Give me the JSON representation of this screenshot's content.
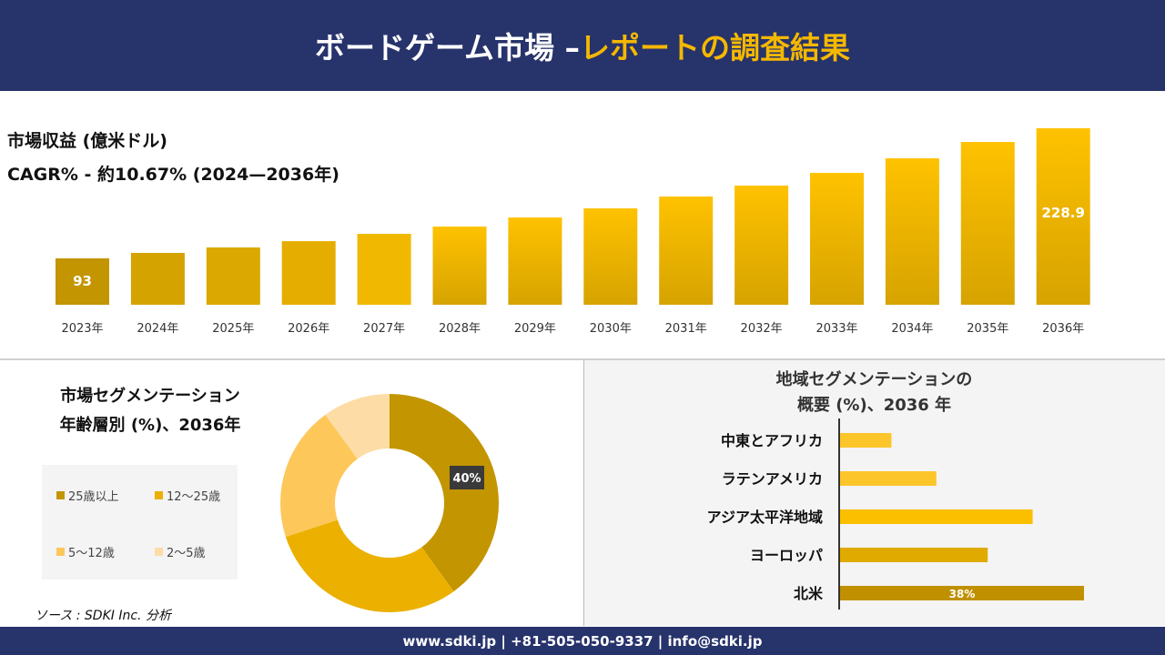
{
  "header": {
    "title_main": "ボードゲーム市場 –",
    "title_accent": "レポートの調査結果"
  },
  "colors": {
    "navy": "#27336b",
    "gold": "#f5b800"
  },
  "chart_data": [
    {
      "type": "bar",
      "title": "市場収益 (億米ドル)",
      "subtitle": "CAGR% - 約10.67% (2024—2036年)",
      "categories": [
        "2023年",
        "2024年",
        "2025年",
        "2026年",
        "2027年",
        "2028年",
        "2029年",
        "2030年",
        "2031年",
        "2032年",
        "2033年",
        "2034年",
        "2035年",
        "2036年"
      ],
      "values": [
        93,
        98.7,
        104.4,
        111,
        118.6,
        126.2,
        135.7,
        145.2,
        157.6,
        169,
        182.3,
        197.5,
        214.6,
        228.9
      ],
      "data_labels": {
        "0": "93",
        "13": "228.9"
      }
    },
    {
      "type": "pie",
      "variant": "donut",
      "title_line1": "市場セグメンテーション",
      "title_line2": "年齢層別 (%)、2036年",
      "labels": [
        "25歳以上",
        "12〜25歳",
        "5〜12歳",
        "2〜5歳"
      ],
      "values": [
        40,
        30,
        20,
        10
      ],
      "colors": [
        "#c39500",
        "#ebb000",
        "#fdc75a",
        "#fddca6"
      ],
      "data_label": "40%",
      "legend": "left"
    },
    {
      "type": "bar",
      "orientation": "horizontal",
      "title_line1": "地域セグメンテーションの",
      "title_line2": "概要 (%)、2036 年",
      "categories": [
        "中東とアフリカ",
        "ラテンアメリカ",
        "アジア太平洋地域",
        "ヨーロッパ",
        "北米"
      ],
      "values": [
        8,
        15,
        30,
        23,
        38
      ],
      "colors": [
        "#fcc62b",
        "#fcc62b",
        "#fbbf00",
        "#e0aa00",
        "#c09000"
      ],
      "data_label": "38%"
    }
  ],
  "source": "ソース : SDKI Inc. 分析",
  "footer": "www.sdki.jp | +81-505-050-9337 | info@sdki.jp"
}
